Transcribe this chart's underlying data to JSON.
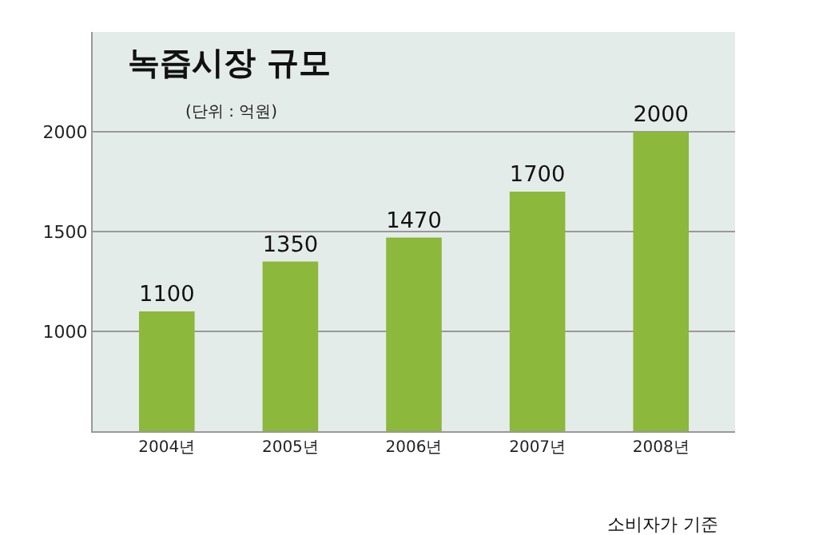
{
  "chart_data": {
    "type": "bar",
    "title": "녹즙시장 규모",
    "subtitle": "(단위 : 억원)",
    "categories": [
      "2004년",
      "2005년",
      "2006년",
      "2007년",
      "2008년"
    ],
    "values": [
      1100,
      1350,
      1470,
      1700,
      2000
    ],
    "color": "#8cb83c",
    "ylim": [
      500,
      2500
    ],
    "yticks": [
      1000,
      1500,
      2000
    ],
    "grid": "y",
    "data_labels": true,
    "annotations": [
      "소비자가 기준"
    ]
  }
}
